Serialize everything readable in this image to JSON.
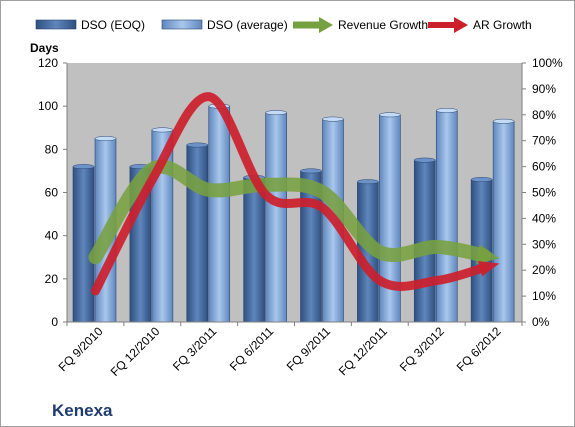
{
  "chart_data": {
    "type": "bar",
    "categories": [
      "FQ 9/2010",
      "FQ 12/2010",
      "FQ 3/2011",
      "FQ 6/2011",
      "FQ 9/2011",
      "FQ 12/2011",
      "FQ 3/2012",
      "FQ 6/2012"
    ],
    "series": [
      {
        "name": "DSO (EOQ)",
        "kind": "bar",
        "axis": "left",
        "color": "#4a6fa5",
        "values": [
          72,
          72,
          82,
          67,
          70,
          65,
          75,
          66
        ]
      },
      {
        "name": "DSO (average)",
        "kind": "bar",
        "axis": "left",
        "color": "#86aad8",
        "values": [
          85,
          89,
          100,
          97,
          94,
          96,
          98,
          93
        ]
      },
      {
        "name": "Revenue Growth",
        "kind": "arrow-line",
        "axis": "right",
        "color": "#77a040",
        "values": [
          0.25,
          0.59,
          0.51,
          0.53,
          0.5,
          0.27,
          0.29,
          0.25
        ]
      },
      {
        "name": "AR Growth",
        "kind": "arrow-line",
        "axis": "right",
        "color": "#cc1f2c",
        "values": [
          0.12,
          0.55,
          0.87,
          0.49,
          0.44,
          0.16,
          0.16,
          0.22
        ]
      }
    ],
    "ylabel": "Days",
    "ylim": [
      0,
      120
    ],
    "yticks": [
      0,
      20,
      40,
      60,
      80,
      100,
      120
    ],
    "y2lim": [
      0,
      1.0
    ],
    "y2ticks": [
      "0%",
      "10%",
      "20%",
      "30%",
      "40%",
      "50%",
      "60%",
      "70%",
      "80%",
      "90%",
      "100%"
    ],
    "legend": "top",
    "grid": false,
    "plot_background": "#c0c0c0"
  },
  "company": "Kenexa"
}
